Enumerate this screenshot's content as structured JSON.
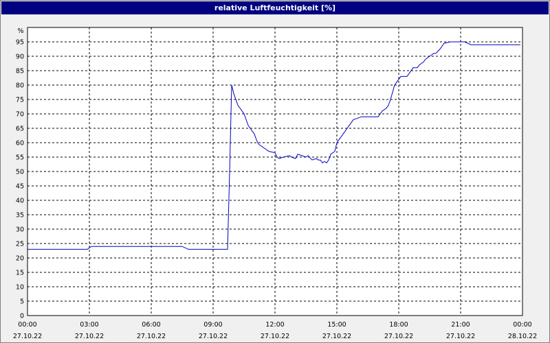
{
  "window": {
    "title": "relative Luftfeuchtigkeit [%]"
  },
  "colors": {
    "titlebar": "#000080",
    "line": "#0000c0",
    "grid": "#000000",
    "background": "#f0f0f0",
    "plot_background": "#ffffff"
  },
  "chart_data": {
    "type": "line",
    "title": "relative Luftfeuchtigkeit [%]",
    "ylabel": "%",
    "ylim": [
      0,
      100
    ],
    "yticks": [
      0,
      5,
      10,
      15,
      20,
      25,
      30,
      35,
      40,
      45,
      50,
      55,
      60,
      65,
      70,
      75,
      80,
      85,
      90,
      95
    ],
    "xlim": [
      "27.10.22 00:00",
      "28.10.22 00:00"
    ],
    "xticks": [
      {
        "time": "00:00",
        "date": "27.10.22"
      },
      {
        "time": "03:00",
        "date": "27.10.22"
      },
      {
        "time": "06:00",
        "date": "27.10.22"
      },
      {
        "time": "09:00",
        "date": "27.10.22"
      },
      {
        "time": "12:00",
        "date": "27.10.22"
      },
      {
        "time": "15:00",
        "date": "27.10.22"
      },
      {
        "time": "18:00",
        "date": "27.10.22"
      },
      {
        "time": "21:00",
        "date": "27.10.22"
      },
      {
        "time": "00:00",
        "date": "28.10.22"
      }
    ],
    "grid": true,
    "series": [
      {
        "x": [
          "00:00",
          "02:54",
          "03:06",
          "03:30",
          "04:00",
          "05:00",
          "06:00",
          "07:00",
          "07:30",
          "07:48",
          "08:00",
          "09:00",
          "09:12",
          "09:36",
          "09:42",
          "09:48",
          "09:54",
          "10:00",
          "10:12",
          "10:30",
          "10:42",
          "10:48",
          "11:00",
          "11:06",
          "11:12",
          "11:24",
          "11:30",
          "11:42",
          "12:00",
          "12:06",
          "12:12",
          "12:24",
          "12:42",
          "12:48",
          "13:00",
          "13:06",
          "13:18",
          "13:30",
          "13:36",
          "13:48",
          "14:00",
          "14:06",
          "14:12",
          "14:18",
          "14:24",
          "14:30",
          "14:36",
          "14:42",
          "14:54",
          "15:00",
          "15:12",
          "15:24",
          "15:30",
          "15:36",
          "15:42",
          "15:48",
          "16:00",
          "16:12",
          "16:24",
          "16:42",
          "16:54",
          "17:00",
          "17:12",
          "17:24",
          "17:30",
          "17:36",
          "17:48",
          "18:00",
          "18:06",
          "18:24",
          "18:30",
          "18:42",
          "18:54",
          "19:00",
          "19:12",
          "19:18",
          "19:30",
          "19:36",
          "19:42",
          "19:48",
          "20:00",
          "20:12",
          "20:30",
          "20:42",
          "21:00",
          "21:12",
          "21:30",
          "22:00",
          "23:00",
          "23:54"
        ],
        "y": [
          23,
          23,
          24,
          24,
          24,
          24,
          24,
          24,
          24,
          23,
          23,
          23,
          23,
          23,
          23,
          50,
          80,
          77,
          73,
          70,
          66,
          65,
          63,
          61,
          59.5,
          58.5,
          58,
          57,
          56.5,
          55,
          54.5,
          55,
          55.5,
          55,
          54.5,
          56,
          55.5,
          55,
          55.5,
          54,
          54.5,
          54,
          54,
          53,
          53.5,
          53,
          54,
          56,
          57,
          60,
          62,
          64,
          65,
          66,
          67,
          68,
          68.5,
          69,
          69,
          69,
          69,
          69,
          71,
          72,
          73,
          75,
          80,
          82,
          83,
          83,
          84,
          86,
          86,
          87,
          88,
          89,
          90,
          90.5,
          91,
          91,
          92.5,
          94.5,
          95,
          95,
          95,
          95,
          94,
          94,
          94,
          94
        ]
      }
    ]
  }
}
